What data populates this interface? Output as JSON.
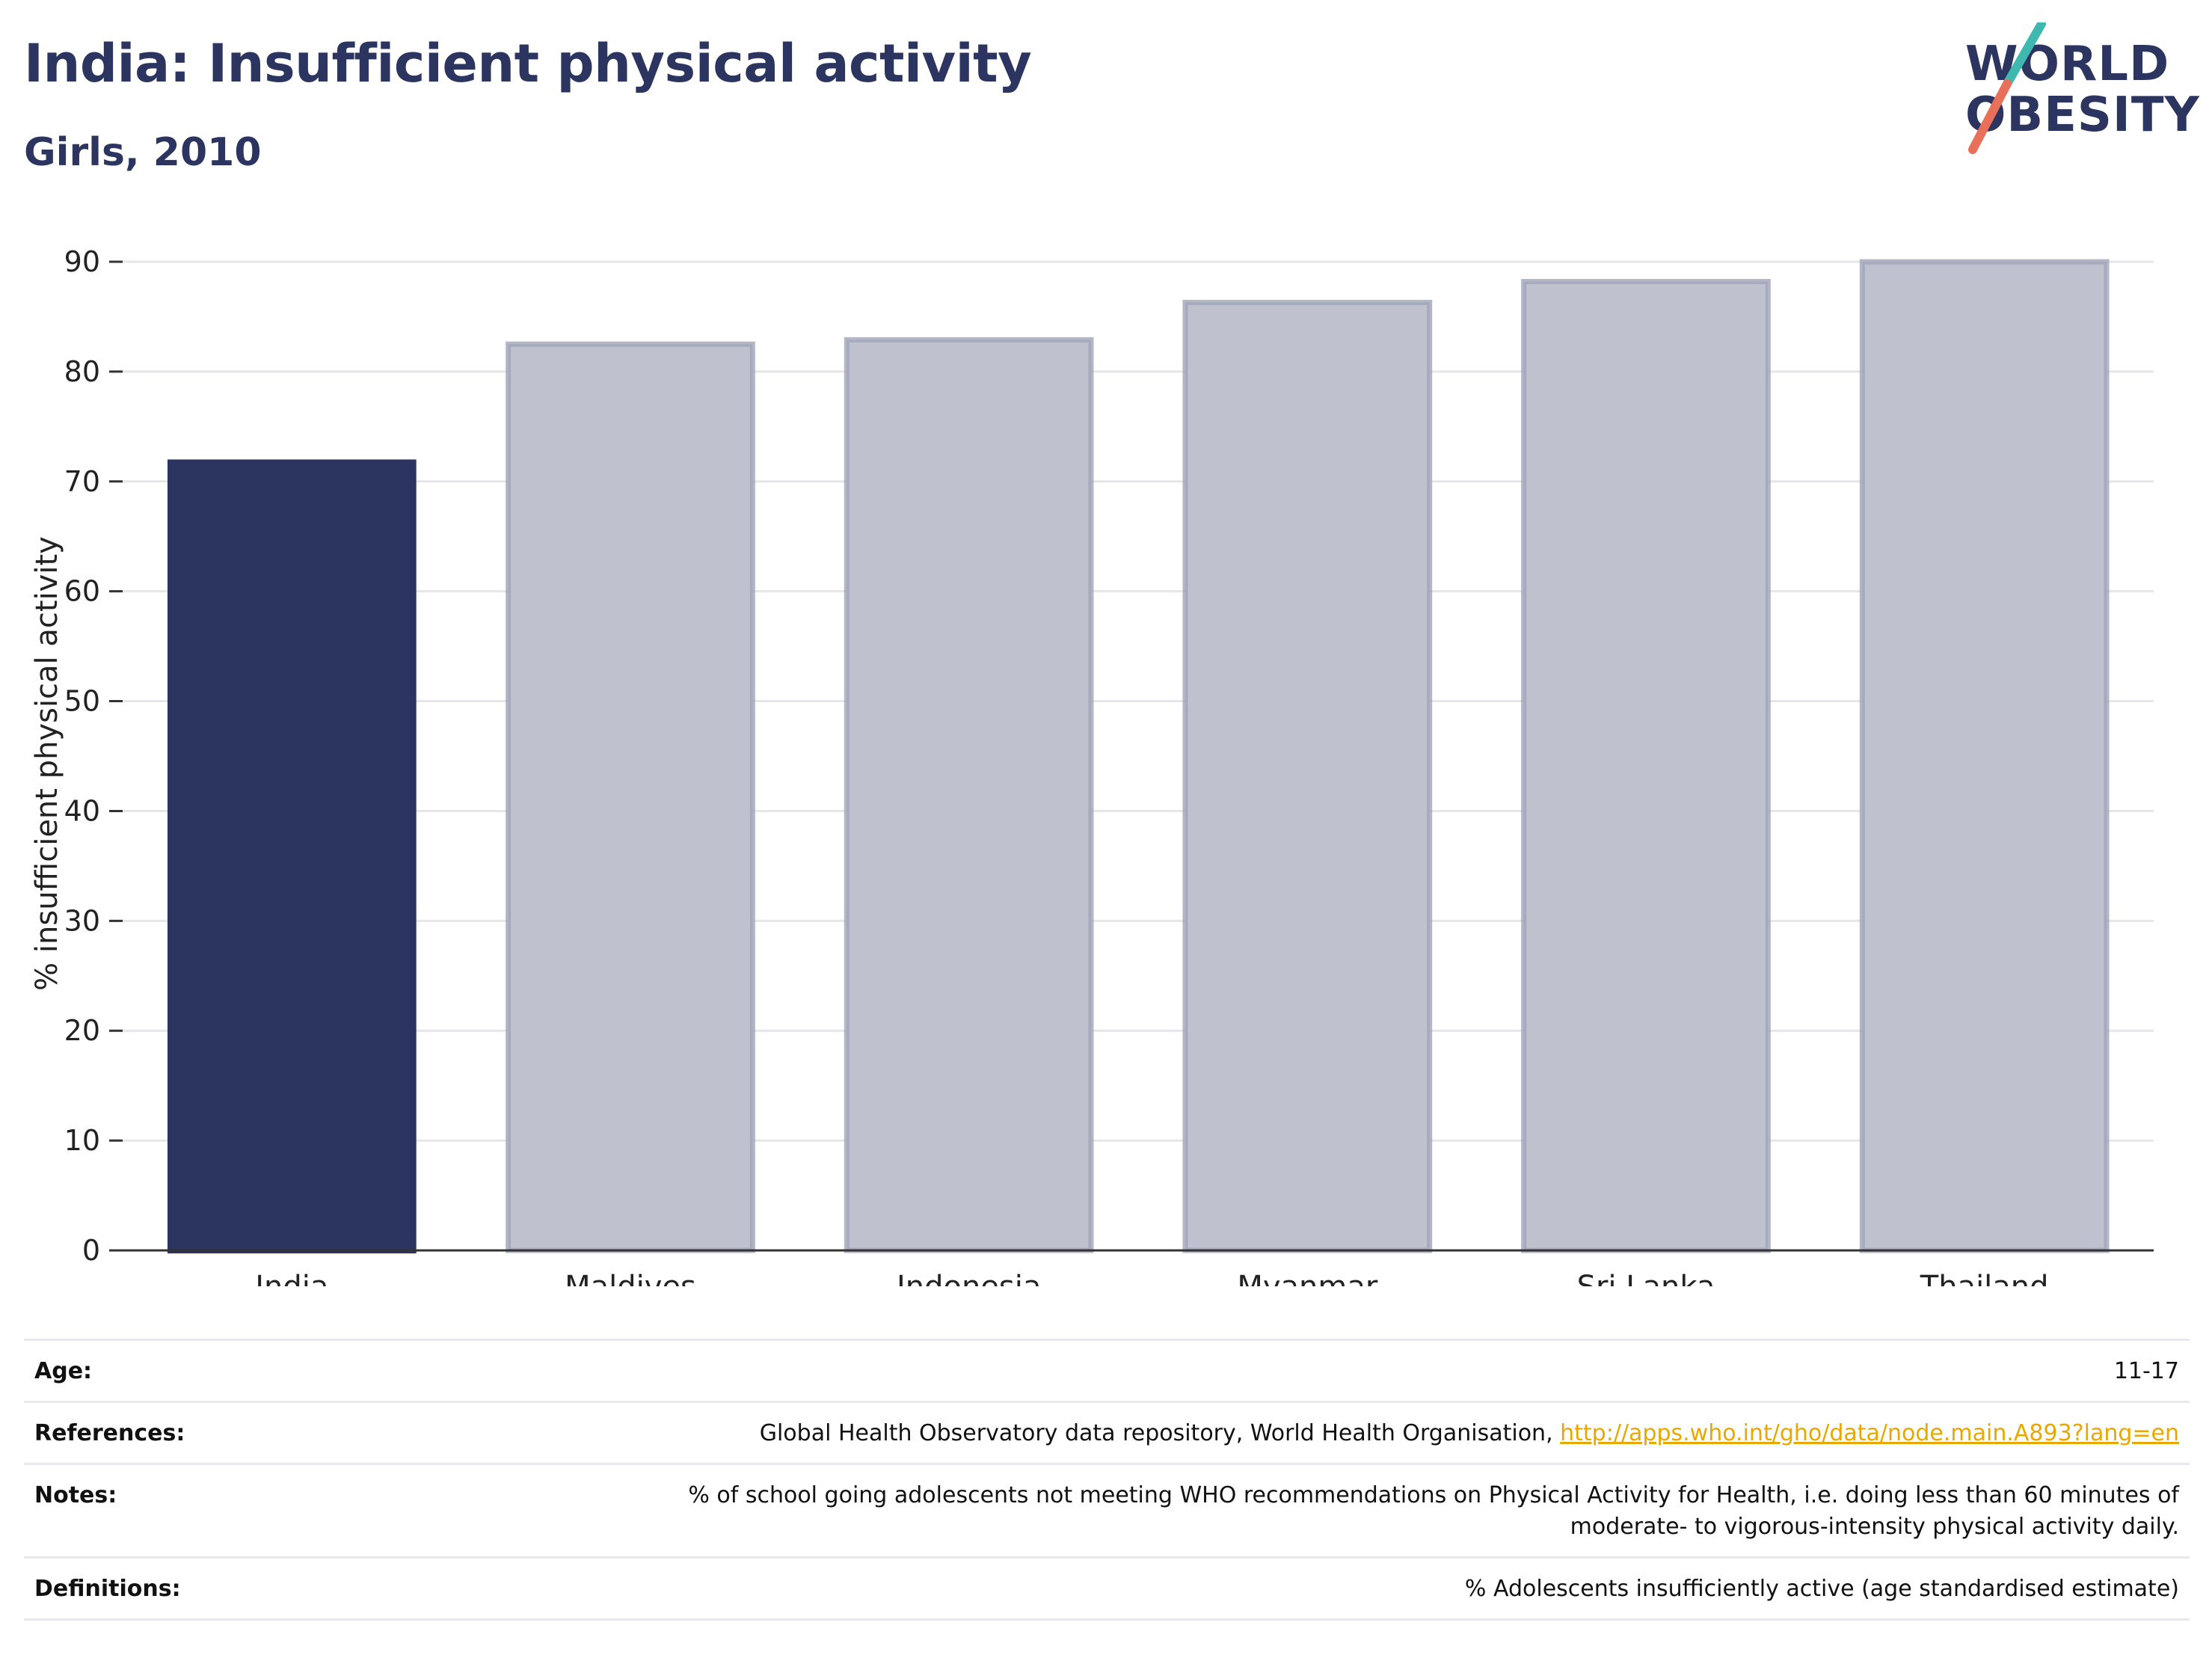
{
  "header": {
    "title": "India: Insufficient physical activity",
    "subtitle": "Girls, 2010"
  },
  "logo": {
    "line1": "WORLD",
    "line2": "OBESITY",
    "colors": {
      "text": "#2b3560",
      "slash_top": "#3fb8b0",
      "slash_bottom": "#e8705a"
    }
  },
  "chart_data": {
    "type": "bar",
    "categories": [
      "India",
      "Maldives",
      "Indonesia",
      "Myanmar",
      "Sri Lanka",
      "Thailand"
    ],
    "values": [
      72,
      82.7,
      83.1,
      86.5,
      88.4,
      90.2
    ],
    "highlight": "India",
    "ylabel": "% insufficient physical activity",
    "xlabel": "",
    "ylim": [
      0,
      90
    ],
    "yticks": [
      0,
      10,
      20,
      30,
      40,
      50,
      60,
      70,
      80,
      90
    ],
    "grid": true,
    "colors": {
      "highlight": "#2b3560",
      "other_fill": "#bfc2ce",
      "other_stroke": "#9fa4b8"
    }
  },
  "meta": {
    "rows": [
      {
        "label": "Age:",
        "value": "11-17"
      },
      {
        "label": "References:",
        "value": "Global Health Observatory data repository, World Health Organisation, ",
        "link": "http://apps.who.int/gho/data/node.main.A893?lang=en"
      },
      {
        "label": "Notes:",
        "value": "% of school going adolescents not meeting WHO recommendations on Physical Activity for Health, i.e. doing less than 60 minutes of moderate- to vigorous-intensity physical activity daily."
      },
      {
        "label": "Definitions:",
        "value": "% Adolescents insufficiently active (age standardised estimate)"
      }
    ]
  }
}
